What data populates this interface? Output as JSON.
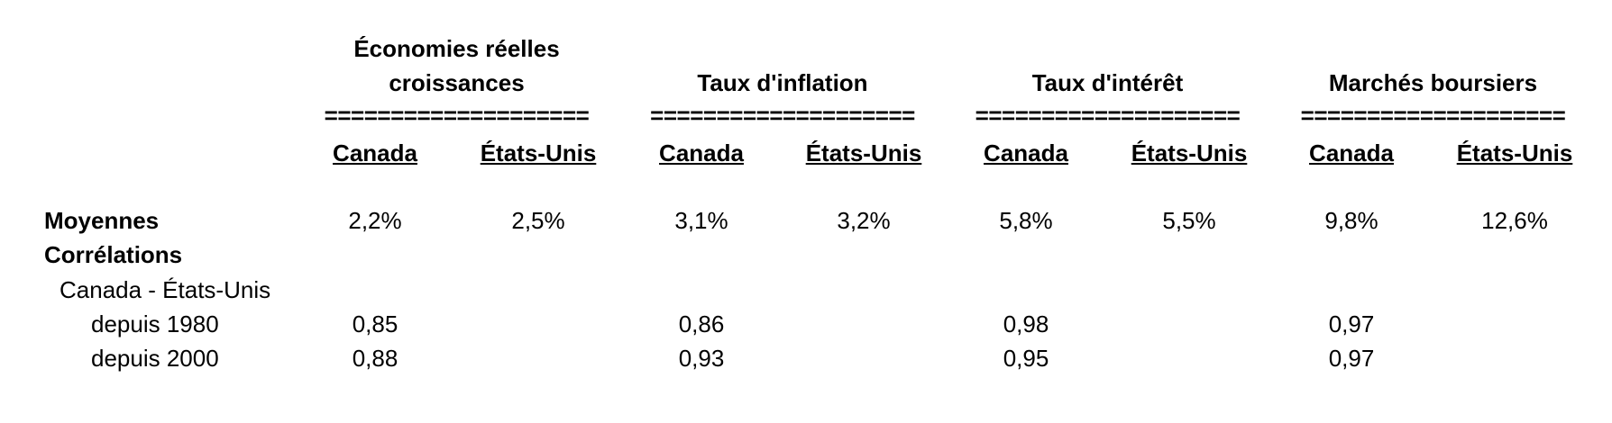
{
  "table": {
    "groups": [
      {
        "title": "Économies réelles croissances",
        "separator": "====================",
        "columns": [
          "Canada",
          "États-Unis"
        ]
      },
      {
        "title": "Taux d'inflation",
        "separator": "====================",
        "columns": [
          "Canada",
          "États-Unis"
        ]
      },
      {
        "title": "Taux d'intérêt",
        "separator": "====================",
        "columns": [
          "Canada",
          "États-Unis"
        ]
      },
      {
        "title": "Marchés boursiers",
        "separator": "====================",
        "columns": [
          "Canada",
          "États-Unis"
        ]
      }
    ],
    "rows": [
      {
        "label": "Moyennes",
        "values": [
          "2,2%",
          "2,5%",
          "3,1%",
          "3,2%",
          "5,8%",
          "5,5%",
          "9,8%",
          "12,6%"
        ]
      },
      {
        "label": "Corrélations"
      },
      {
        "label": "Canada - États-Unis"
      },
      {
        "label": "depuis 1980",
        "group_values": [
          "0,85",
          "0,86",
          "0,98",
          "0,97"
        ]
      },
      {
        "label": "depuis 2000",
        "group_values": [
          "0,88",
          "0,93",
          "0,95",
          "0,97"
        ]
      }
    ]
  }
}
